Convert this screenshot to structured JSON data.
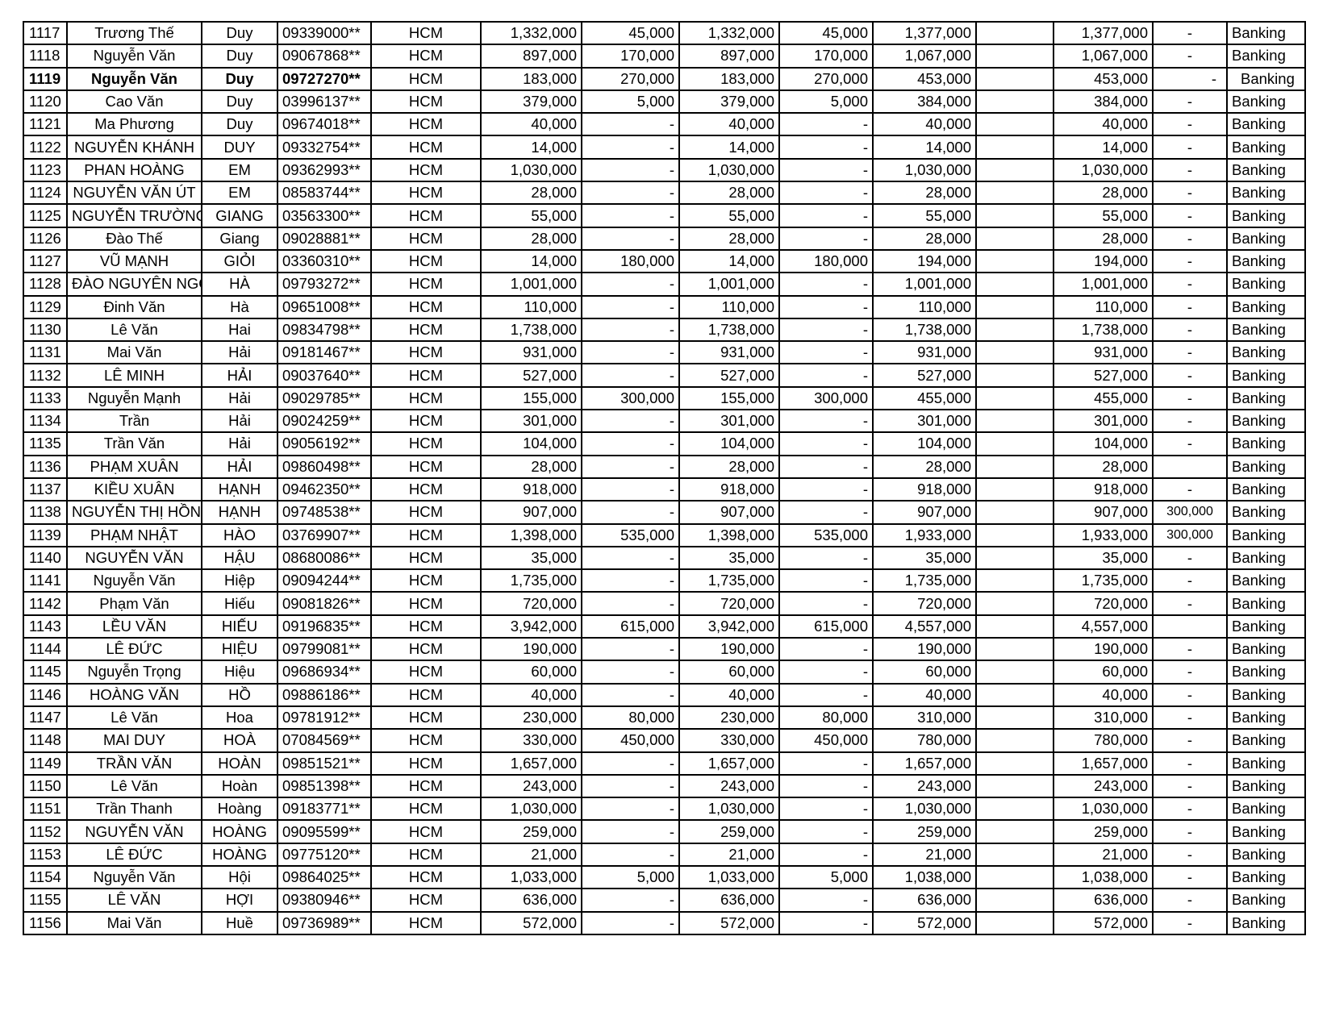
{
  "table": {
    "rows": [
      [
        "1117",
        "Trương Thế",
        "Duy",
        "09339000**",
        "HCM",
        "1,332,000",
        "45,000",
        "1,332,000",
        "45,000",
        "1,377,000",
        "",
        "1,377,000",
        "-",
        "Banking"
      ],
      [
        "1118",
        "Nguyễn Văn",
        "Duy",
        "09067868**",
        "HCM",
        "897,000",
        "170,000",
        "897,000",
        "170,000",
        "1,067,000",
        "",
        "1,067,000",
        "-",
        "Banking"
      ],
      [
        "1119",
        "Nguyễn Văn",
        "Duy",
        "09727270**",
        "HCM",
        "183,000",
        "270,000",
        "183,000",
        "270,000",
        "453,000",
        "",
        "453,000",
        "-",
        "Banking"
      ],
      [
        "1120",
        "Cao Văn",
        "Duy",
        "03996137**",
        "HCM",
        "379,000",
        "5,000",
        "379,000",
        "5,000",
        "384,000",
        "",
        "384,000",
        "-",
        "Banking"
      ],
      [
        "1121",
        "Ma Phương",
        "Duy",
        "09674018**",
        "HCM",
        "40,000",
        "-",
        "40,000",
        "-",
        "40,000",
        "",
        "40,000",
        "-",
        "Banking"
      ],
      [
        "1122",
        "NGUYỄN KHÁNH",
        "DUY",
        "09332754**",
        "HCM",
        "14,000",
        "-",
        "14,000",
        "-",
        "14,000",
        "",
        "14,000",
        "-",
        "Banking"
      ],
      [
        "1123",
        "PHAN HOÀNG",
        "EM",
        "09362993**",
        "HCM",
        "1,030,000",
        "-",
        "1,030,000",
        "-",
        "1,030,000",
        "",
        "1,030,000",
        "-",
        "Banking"
      ],
      [
        "1124",
        "NGUYỄN VĂN ÚT",
        "EM",
        "08583744**",
        "HCM",
        "28,000",
        "-",
        "28,000",
        "-",
        "28,000",
        "",
        "28,000",
        "-",
        "Banking"
      ],
      [
        "1125",
        "NGUYỄN TRƯỜNG",
        "GIANG",
        "03563300**",
        "HCM",
        "55,000",
        "-",
        "55,000",
        "-",
        "55,000",
        "",
        "55,000",
        "-",
        "Banking"
      ],
      [
        "1126",
        "Đào Thế",
        "Giang",
        "09028881**",
        "HCM",
        "28,000",
        "-",
        "28,000",
        "-",
        "28,000",
        "",
        "28,000",
        "-",
        "Banking"
      ],
      [
        "1127",
        "VŨ MẠNH",
        "GIỎI",
        "03360310**",
        "HCM",
        "14,000",
        "180,000",
        "14,000",
        "180,000",
        "194,000",
        "",
        "194,000",
        "-",
        "Banking"
      ],
      [
        "1128",
        "ĐÀO NGUYÊN NGỌC",
        "HÀ",
        "09793272**",
        "HCM",
        "1,001,000",
        "-",
        "1,001,000",
        "-",
        "1,001,000",
        "",
        "1,001,000",
        "-",
        "Banking"
      ],
      [
        "1129",
        "Đinh Văn",
        "Hà",
        "09651008**",
        "HCM",
        "110,000",
        "-",
        "110,000",
        "-",
        "110,000",
        "",
        "110,000",
        "-",
        "Banking"
      ],
      [
        "1130",
        "Lê Văn",
        "Hai",
        "09834798**",
        "HCM",
        "1,738,000",
        "-",
        "1,738,000",
        "-",
        "1,738,000",
        "",
        "1,738,000",
        "-",
        "Banking"
      ],
      [
        "1131",
        "Mai Văn",
        "Hải",
        "09181467**",
        "HCM",
        "931,000",
        "-",
        "931,000",
        "-",
        "931,000",
        "",
        "931,000",
        "-",
        "Banking"
      ],
      [
        "1132",
        "LÊ MINH",
        "HẢI",
        "09037640**",
        "HCM",
        "527,000",
        "-",
        "527,000",
        "-",
        "527,000",
        "",
        "527,000",
        "-",
        "Banking"
      ],
      [
        "1133",
        "Nguyễn Mạnh",
        "Hải",
        "09029785**",
        "HCM",
        "155,000",
        "300,000",
        "155,000",
        "300,000",
        "455,000",
        "",
        "455,000",
        "-",
        "Banking"
      ],
      [
        "1134",
        "Trần",
        "Hải",
        "09024259**",
        "HCM",
        "301,000",
        "-",
        "301,000",
        "-",
        "301,000",
        "",
        "301,000",
        "-",
        "Banking"
      ],
      [
        "1135",
        "Trần Văn",
        "Hải",
        "09056192**",
        "HCM",
        "104,000",
        "-",
        "104,000",
        "-",
        "104,000",
        "",
        "104,000",
        "-",
        "Banking"
      ],
      [
        "1136",
        "PHẠM XUÂN",
        "HẢI",
        "09860498**",
        "HCM",
        "28,000",
        "-",
        "28,000",
        "-",
        "28,000",
        "",
        "28,000",
        "",
        "Banking"
      ],
      [
        "1137",
        "KIỀU XUÂN",
        "HẠNH",
        "09462350**",
        "HCM",
        "918,000",
        "-",
        "918,000",
        "-",
        "918,000",
        "",
        "918,000",
        "-",
        "Banking"
      ],
      [
        "1138",
        "NGUYỄN THỊ HỒNG",
        "HẠNH",
        "09748538**",
        "HCM",
        "907,000",
        "-",
        "907,000",
        "-",
        "907,000",
        "",
        "907,000",
        "300,000",
        "Banking"
      ],
      [
        "1139",
        "PHẠM NHẬT",
        "HÀO",
        "03769907**",
        "HCM",
        "1,398,000",
        "535,000",
        "1,398,000",
        "535,000",
        "1,933,000",
        "",
        "1,933,000",
        "300,000",
        "Banking"
      ],
      [
        "1140",
        "NGUYỄN VĂN",
        "HẬU",
        "08680086**",
        "HCM",
        "35,000",
        "-",
        "35,000",
        "-",
        "35,000",
        "",
        "35,000",
        "-",
        "Banking"
      ],
      [
        "1141",
        "Nguyễn Văn",
        "Hiệp",
        "09094244**",
        "HCM",
        "1,735,000",
        "-",
        "1,735,000",
        "-",
        "1,735,000",
        "",
        "1,735,000",
        "-",
        "Banking"
      ],
      [
        "1142",
        "Phạm Văn",
        "Hiếu",
        "09081826**",
        "HCM",
        "720,000",
        "-",
        "720,000",
        "-",
        "720,000",
        "",
        "720,000",
        "-",
        "Banking"
      ],
      [
        "1143",
        "LỀU VĂN",
        "HIẾU",
        "09196835**",
        "HCM",
        "3,942,000",
        "615,000",
        "3,942,000",
        "615,000",
        "4,557,000",
        "",
        "4,557,000",
        "",
        "Banking"
      ],
      [
        "1144",
        "LÊ ĐỨC",
        "HIỆU",
        "09799081**",
        "HCM",
        "190,000",
        "-",
        "190,000",
        "-",
        "190,000",
        "",
        "190,000",
        "-",
        "Banking"
      ],
      [
        "1145",
        "Nguyễn Trọng",
        "Hiệu",
        "09686934**",
        "HCM",
        "60,000",
        "-",
        "60,000",
        "-",
        "60,000",
        "",
        "60,000",
        "-",
        "Banking"
      ],
      [
        "1146",
        "HOÀNG VĂN",
        "HỒ",
        "09886186**",
        "HCM",
        "40,000",
        "-",
        "40,000",
        "-",
        "40,000",
        "",
        "40,000",
        "-",
        "Banking"
      ],
      [
        "1147",
        "Lê Văn",
        "Hoa",
        "09781912**",
        "HCM",
        "230,000",
        "80,000",
        "230,000",
        "80,000",
        "310,000",
        "",
        "310,000",
        "-",
        "Banking"
      ],
      [
        "1148",
        "MAI DUY",
        "HOÀ",
        "07084569**",
        "HCM",
        "330,000",
        "450,000",
        "330,000",
        "450,000",
        "780,000",
        "",
        "780,000",
        "-",
        "Banking"
      ],
      [
        "1149",
        "TRẦN VĂN",
        "HOÀN",
        "09851521**",
        "HCM",
        "1,657,000",
        "-",
        "1,657,000",
        "-",
        "1,657,000",
        "",
        "1,657,000",
        "-",
        "Banking"
      ],
      [
        "1150",
        "Lê Văn",
        "Hoàn",
        "09851398**",
        "HCM",
        "243,000",
        "-",
        "243,000",
        "-",
        "243,000",
        "",
        "243,000",
        "-",
        "Banking"
      ],
      [
        "1151",
        "Trần Thanh",
        "Hoàng",
        "09183771**",
        "HCM",
        "1,030,000",
        "-",
        "1,030,000",
        "-",
        "1,030,000",
        "",
        "1,030,000",
        "-",
        "Banking"
      ],
      [
        "1152",
        "NGUYỄN VĂN",
        "HOÀNG",
        "09095599**",
        "HCM",
        "259,000",
        "-",
        "259,000",
        "-",
        "259,000",
        "",
        "259,000",
        "-",
        "Banking"
      ],
      [
        "1153",
        "LÊ ĐỨC",
        "HOÀNG",
        "09775120**",
        "HCM",
        "21,000",
        "-",
        "21,000",
        "-",
        "21,000",
        "",
        "21,000",
        "-",
        "Banking"
      ],
      [
        "1154",
        "Nguyễn Văn",
        "Hội",
        "09864025**",
        "HCM",
        "1,033,000",
        "5,000",
        "1,033,000",
        "5,000",
        "1,038,000",
        "",
        "1,038,000",
        "-",
        "Banking"
      ],
      [
        "1155",
        "LÊ VĂN",
        "HỢI",
        "09380946**",
        "HCM",
        "636,000",
        "-",
        "636,000",
        "-",
        "636,000",
        "",
        "636,000",
        "-",
        "Banking"
      ],
      [
        "1156",
        "Mai Văn",
        "Huề",
        "09736989**",
        "HCM",
        "572,000",
        "-",
        "572,000",
        "-",
        "572,000",
        "",
        "572,000",
        "-",
        "Banking"
      ]
    ],
    "bold_row": "1119"
  }
}
